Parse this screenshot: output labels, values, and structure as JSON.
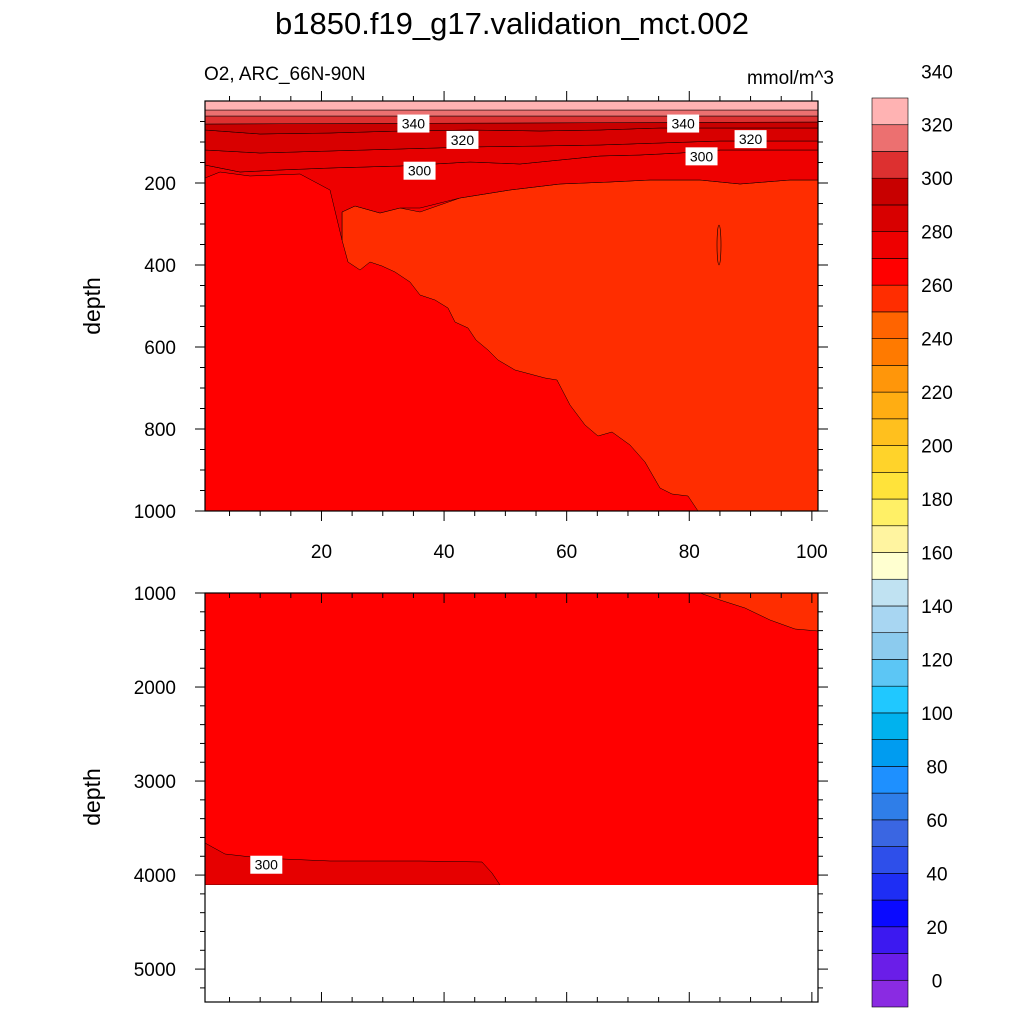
{
  "title": "b1850.f19_g17.validation_mct.002",
  "subtitle": "O2, ARC_66N-90N",
  "units": "mmol/m^3",
  "chart_data": [
    {
      "type": "heatmap",
      "panel": "upper",
      "x_range": [
        1,
        101
      ],
      "y_range": [
        0,
        1000
      ],
      "y_reversed": true,
      "x_ticks": [
        20,
        40,
        60,
        80,
        100
      ],
      "y_ticks": [
        200,
        400,
        600,
        800,
        1000
      ],
      "ylabel": "depth",
      "contour_labels": [
        {
          "text": "340",
          "x": 35,
          "y": 55
        },
        {
          "text": "320",
          "x": 43,
          "y": 95
        },
        {
          "text": "300",
          "x": 36,
          "y": 170
        },
        {
          "text": "340",
          "x": 79,
          "y": 55
        },
        {
          "text": "320",
          "x": 90,
          "y": 93
        },
        {
          "text": "300",
          "x": 82,
          "y": 135
        }
      ]
    },
    {
      "type": "heatmap",
      "panel": "lower",
      "x_range": [
        1,
        101
      ],
      "y_range": [
        1000,
        5350
      ],
      "y_reversed": true,
      "data_bottom": 4120,
      "y_ticks": [
        1000,
        2000,
        3000,
        4000,
        5000
      ],
      "ylabel": "depth",
      "contour_labels": [
        {
          "text": "300",
          "x": 11,
          "y": 3890
        }
      ]
    }
  ],
  "colorbar": {
    "tick_labels": [
      "0",
      "20",
      "40",
      "60",
      "80",
      "100",
      "120",
      "140",
      "160",
      "180",
      "200",
      "220",
      "240",
      "260",
      "280",
      "300",
      "320",
      "340"
    ],
    "colors": [
      "#8a2be2",
      "#6a1ee8",
      "#3c19f0",
      "#0a0aff",
      "#1e2ef4",
      "#2e4fea",
      "#3a66e2",
      "#2f7ee8",
      "#1e90ff",
      "#009cf0",
      "#00b2ee",
      "#20c8ff",
      "#5cc6f5",
      "#8ccbee",
      "#a8d6f2",
      "#c0e2f2",
      "#ffffd0",
      "#fff4a0",
      "#fff066",
      "#ffe33a",
      "#ffd32a",
      "#ffc01e",
      "#ffad12",
      "#ff960a",
      "#ff7a00",
      "#ff6400",
      "#ff2d00",
      "#ff0000",
      "#ee0000",
      "#d80000",
      "#c80000",
      "#dd3030",
      "#ec7070",
      "#ffb3b3"
    ]
  }
}
